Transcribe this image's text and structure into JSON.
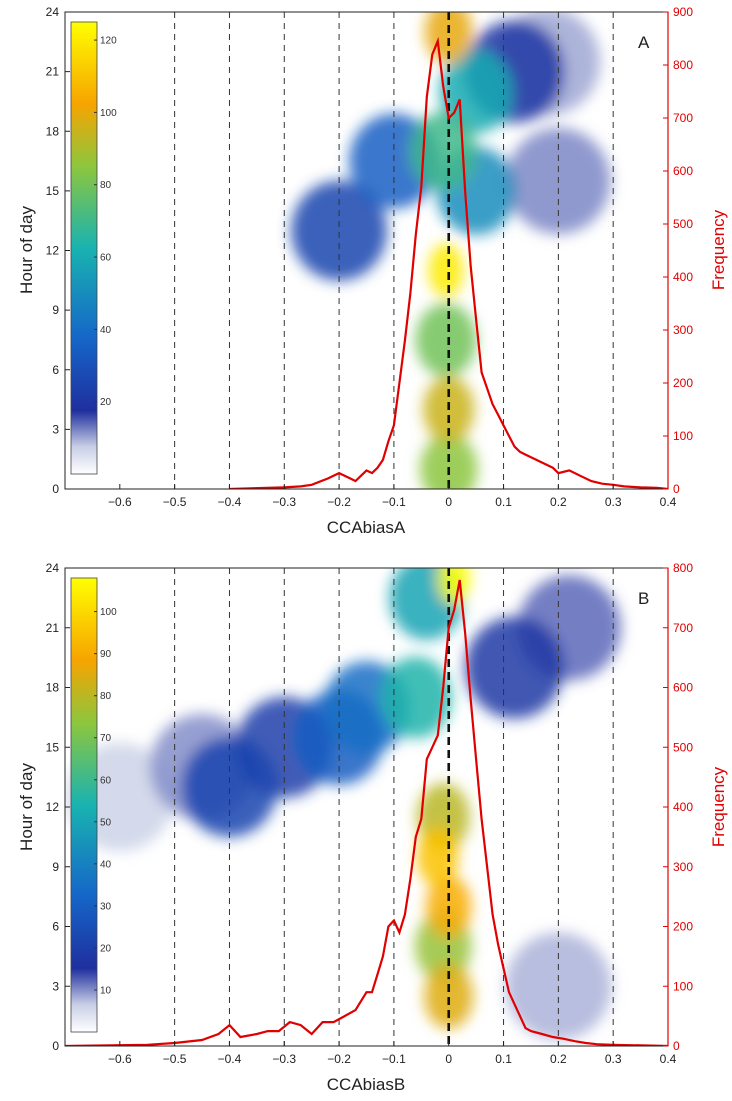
{
  "chart_data": [
    {
      "type": "heatmap",
      "panel_label": "A",
      "xlabel": "CCAbiasA",
      "ylabel": "Hour of day",
      "y2label": "Frequency",
      "xlim": [
        -0.7,
        0.4
      ],
      "ylim": [
        0,
        24
      ],
      "y2lim": [
        0,
        900
      ],
      "xticks": [
        -0.6,
        -0.5,
        -0.4,
        -0.3,
        -0.2,
        -0.1,
        0,
        0.1,
        0.2,
        0.3,
        0.4
      ],
      "yticks": [
        0,
        3,
        6,
        9,
        12,
        15,
        18,
        21,
        24
      ],
      "y2ticks": [
        0,
        100,
        200,
        300,
        400,
        500,
        600,
        700,
        800,
        900
      ],
      "vlines": [
        -0.5,
        -0.4,
        -0.3,
        -0.2,
        -0.1,
        0.1,
        0.2,
        0.3
      ],
      "zero_line": 0,
      "colorbar": {
        "ticks": [
          20,
          40,
          60,
          80,
          100,
          120
        ],
        "max": 125
      },
      "frequency": {
        "color": "#e00000",
        "x": [
          -0.4,
          -0.3,
          -0.27,
          -0.25,
          -0.22,
          -0.2,
          -0.18,
          -0.17,
          -0.15,
          -0.14,
          -0.13,
          -0.12,
          -0.11,
          -0.1,
          -0.09,
          -0.08,
          -0.07,
          -0.06,
          -0.05,
          -0.04,
          -0.03,
          -0.02,
          -0.01,
          0.0,
          0.01,
          0.02,
          0.03,
          0.04,
          0.05,
          0.06,
          0.07,
          0.08,
          0.09,
          0.1,
          0.11,
          0.12,
          0.13,
          0.14,
          0.15,
          0.17,
          0.19,
          0.2,
          0.22,
          0.24,
          0.26,
          0.28,
          0.3,
          0.32,
          0.35,
          0.38,
          0.4
        ],
        "y": [
          0,
          3,
          5,
          8,
          20,
          30,
          20,
          15,
          35,
          30,
          40,
          55,
          90,
          120,
          200,
          280,
          370,
          480,
          570,
          740,
          820,
          845,
          760,
          700,
          710,
          735,
          560,
          420,
          320,
          220,
          190,
          160,
          140,
          120,
          100,
          80,
          70,
          65,
          60,
          50,
          40,
          30,
          35,
          25,
          15,
          10,
          8,
          5,
          3,
          2,
          0
        ]
      },
      "density_peaks": [
        {
          "x": -0.005,
          "y": 11,
          "value": 120
        },
        {
          "x": 0.0,
          "y": 4,
          "value": 95
        },
        {
          "x": 0.0,
          "y": 1,
          "value": 85
        },
        {
          "x": 0.0,
          "y": 23,
          "value": 100
        },
        {
          "x": -0.005,
          "y": 7.5,
          "value": 80
        },
        {
          "x": -0.01,
          "y": 17,
          "value": 70
        },
        {
          "x": 0.05,
          "y": 15,
          "value": 50
        },
        {
          "x": 0.05,
          "y": 20,
          "value": 60
        },
        {
          "x": -0.1,
          "y": 16.5,
          "value": 35
        },
        {
          "x": -0.2,
          "y": 13,
          "value": 25
        },
        {
          "x": 0.12,
          "y": 21,
          "value": 20
        },
        {
          "x": 0.2,
          "y": 15.5,
          "value": 12
        },
        {
          "x": 0.18,
          "y": 21.5,
          "value": 10
        }
      ]
    },
    {
      "type": "heatmap",
      "panel_label": "B",
      "xlabel": "CCAbiasB",
      "ylabel": "Hour of day",
      "y2label": "Frequency",
      "xlim": [
        -0.7,
        0.4
      ],
      "ylim": [
        0,
        24
      ],
      "y2lim": [
        0,
        800
      ],
      "xticks": [
        -0.6,
        -0.5,
        -0.4,
        -0.3,
        -0.2,
        -0.1,
        0,
        0.1,
        0.2,
        0.3,
        0.4
      ],
      "yticks": [
        0,
        3,
        6,
        9,
        12,
        15,
        18,
        21,
        24
      ],
      "y2ticks": [
        0,
        100,
        200,
        300,
        400,
        500,
        600,
        700,
        800
      ],
      "vlines": [
        -0.5,
        -0.4,
        -0.3,
        -0.2,
        -0.1,
        0.1,
        0.2,
        0.3
      ],
      "zero_line": 0,
      "colorbar": {
        "ticks": [
          10,
          20,
          30,
          40,
          50,
          60,
          70,
          80,
          90,
          100
        ],
        "max": 108
      },
      "frequency": {
        "color": "#e00000",
        "x": [
          -0.7,
          -0.55,
          -0.5,
          -0.45,
          -0.42,
          -0.4,
          -0.38,
          -0.35,
          -0.33,
          -0.31,
          -0.29,
          -0.27,
          -0.25,
          -0.23,
          -0.21,
          -0.19,
          -0.17,
          -0.15,
          -0.14,
          -0.13,
          -0.12,
          -0.11,
          -0.1,
          -0.09,
          -0.08,
          -0.07,
          -0.06,
          -0.05,
          -0.04,
          -0.03,
          -0.02,
          -0.01,
          0.0,
          0.01,
          0.02,
          0.03,
          0.04,
          0.05,
          0.06,
          0.07,
          0.08,
          0.09,
          0.1,
          0.11,
          0.12,
          0.13,
          0.14,
          0.15,
          0.17,
          0.19,
          0.21,
          0.23,
          0.25,
          0.27,
          0.3,
          0.35,
          0.4
        ],
        "y": [
          0,
          2,
          5,
          10,
          20,
          35,
          15,
          20,
          25,
          25,
          40,
          35,
          20,
          40,
          40,
          50,
          60,
          90,
          90,
          120,
          150,
          200,
          210,
          190,
          220,
          280,
          350,
          380,
          480,
          500,
          520,
          600,
          700,
          730,
          780,
          690,
          580,
          480,
          380,
          300,
          220,
          170,
          130,
          90,
          70,
          50,
          30,
          25,
          20,
          15,
          12,
          8,
          5,
          3,
          2,
          1,
          0
        ]
      },
      "density_peaks": [
        {
          "x": 0.01,
          "y": 23.5,
          "value": 108
        },
        {
          "x": -0.02,
          "y": 9.5,
          "value": 95
        },
        {
          "x": 0.0,
          "y": 7,
          "value": 90
        },
        {
          "x": 0.0,
          "y": 2.5,
          "value": 85
        },
        {
          "x": -0.01,
          "y": 5,
          "value": 75
        },
        {
          "x": -0.01,
          "y": 11.5,
          "value": 80
        },
        {
          "x": -0.06,
          "y": 17.5,
          "value": 55
        },
        {
          "x": -0.04,
          "y": 22.5,
          "value": 50
        },
        {
          "x": -0.15,
          "y": 17,
          "value": 35
        },
        {
          "x": -0.2,
          "y": 15.5,
          "value": 30
        },
        {
          "x": -0.3,
          "y": 15,
          "value": 20
        },
        {
          "x": -0.4,
          "y": 13,
          "value": 22
        },
        {
          "x": -0.45,
          "y": 14,
          "value": 10
        },
        {
          "x": -0.6,
          "y": 12.5,
          "value": 6
        },
        {
          "x": 0.12,
          "y": 19,
          "value": 18
        },
        {
          "x": 0.22,
          "y": 21,
          "value": 12
        },
        {
          "x": 0.2,
          "y": 3,
          "value": 8
        }
      ]
    }
  ]
}
